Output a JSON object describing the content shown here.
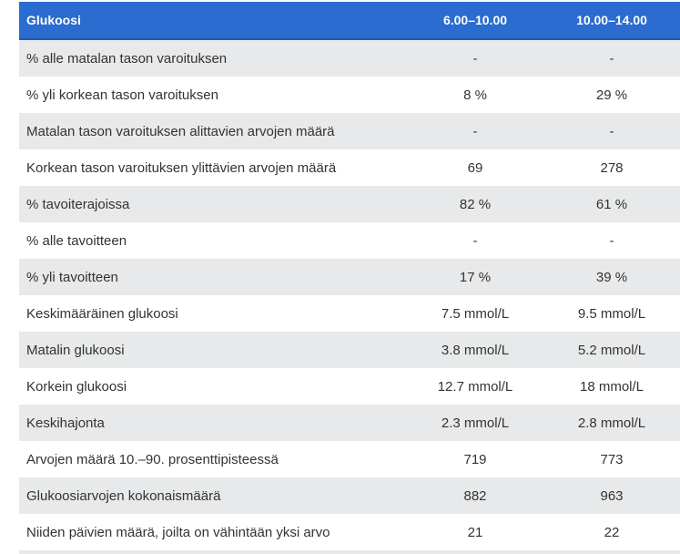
{
  "table": {
    "headers": [
      "Glukoosi",
      "6.00–10.00",
      "10.00–14.00"
    ],
    "rows": [
      [
        "% alle matalan tason varoituksen",
        "-",
        "-"
      ],
      [
        "% yli korkean tason varoituksen",
        "8 %",
        "29 %"
      ],
      [
        "Matalan tason varoituksen alittavien arvojen määrä",
        "-",
        "-"
      ],
      [
        "Korkean tason varoituksen ylittävien arvojen määrä",
        "69",
        "278"
      ],
      [
        "% tavoiterajoissa",
        "82 %",
        "61 %"
      ],
      [
        "% alle tavoitteen",
        "-",
        "-"
      ],
      [
        "% yli tavoitteen",
        "17 %",
        "39 %"
      ],
      [
        "Keskimääräinen glukoosi",
        "7.5 mmol/L",
        "9.5 mmol/L"
      ],
      [
        "Matalin glukoosi",
        "3.8 mmol/L",
        "5.2 mmol/L"
      ],
      [
        "Korkein glukoosi",
        "12.7 mmol/L",
        "18 mmol/L"
      ],
      [
        "Keskihajonta",
        "2.3 mmol/L",
        "2.8 mmol/L"
      ],
      [
        "Arvojen määrä 10.–90. prosenttipisteessä",
        "719",
        "773"
      ],
      [
        "Glukoosiarvojen kokonaismäärä",
        "882",
        "963"
      ],
      [
        "Niiden päivien määrä, joilta on vähintään yksi arvo",
        "21",
        "22"
      ]
    ]
  }
}
